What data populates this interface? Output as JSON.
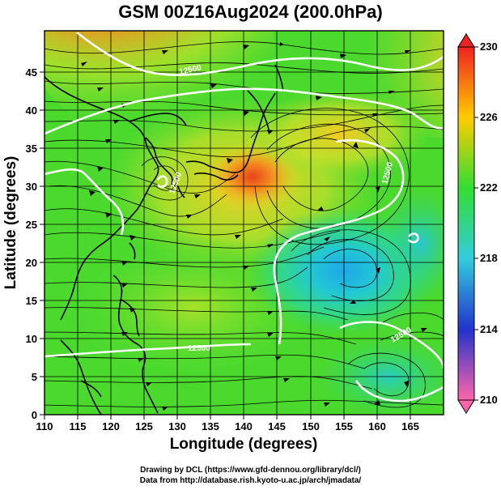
{
  "title": "GSM 00Z16Aug2024 (200.0hPa)",
  "axes": {
    "xlabel": "Longitude (degrees)",
    "ylabel": "Latitude  (degrees)",
    "x_ticks": [
      "110",
      "115",
      "120",
      "125",
      "130",
      "135",
      "140",
      "145",
      "150",
      "155",
      "160",
      "165"
    ],
    "y_ticks": [
      "0",
      "5",
      "10",
      "15",
      "20",
      "25",
      "30",
      "35",
      "40",
      "45"
    ],
    "xlim": [
      110,
      170
    ],
    "ylim": [
      0,
      50
    ]
  },
  "colorbar": {
    "labels": [
      "230",
      "226",
      "222",
      "218",
      "214",
      "210"
    ],
    "range": [
      210,
      230
    ],
    "colors": [
      "#ff66aa",
      "#2233cc",
      "#33ccdd",
      "#33dd33",
      "#ffcc00",
      "#ee2222"
    ]
  },
  "contour_labels": [
    "12500",
    "12500",
    "12500",
    "12500",
    "12500"
  ],
  "credits": {
    "line1": "Drawing by DCL (https://www.gfd-dennou.org/library/dcl/)",
    "line2": "Data from http://database.rish.kyoto-u.ac.jp/arch/jmadata/"
  }
}
